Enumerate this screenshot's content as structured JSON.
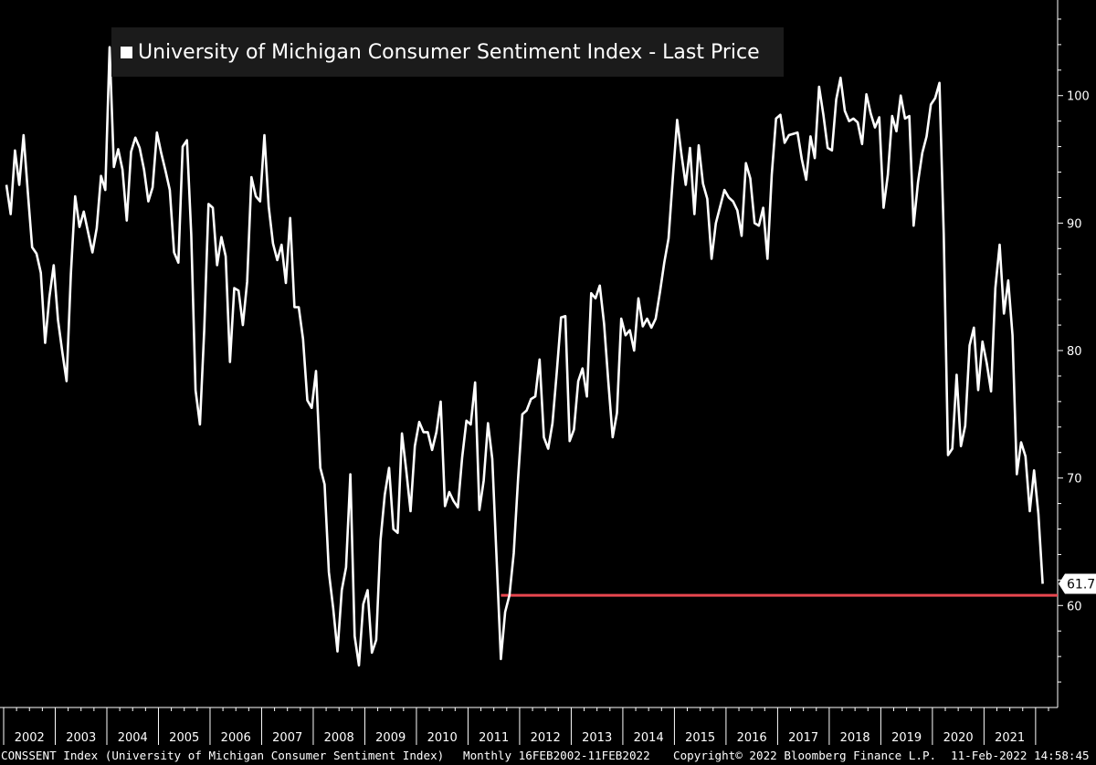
{
  "chart_data": {
    "type": "line",
    "title": "University of Michigan Consumer Sentiment Index - Last Price",
    "series": [
      {
        "name": "University of Michigan Consumer Sentiment Index - Last Price",
        "color": "#ffffff",
        "x": [
          "2002-01",
          "2002-02",
          "2002-03",
          "2002-04",
          "2002-05",
          "2002-06",
          "2002-07",
          "2002-08",
          "2002-09",
          "2002-10",
          "2002-11",
          "2002-12",
          "2003-01",
          "2003-02",
          "2003-03",
          "2003-04",
          "2003-05",
          "2003-06",
          "2003-07",
          "2003-08",
          "2003-09",
          "2003-10",
          "2003-11",
          "2003-12",
          "2004-01",
          "2004-02",
          "2004-03",
          "2004-04",
          "2004-05",
          "2004-06",
          "2004-07",
          "2004-08",
          "2004-09",
          "2004-10",
          "2004-11",
          "2004-12",
          "2005-01",
          "2005-02",
          "2005-03",
          "2005-04",
          "2005-05",
          "2005-06",
          "2005-07",
          "2005-08",
          "2005-09",
          "2005-10",
          "2005-11",
          "2005-12",
          "2006-01",
          "2006-02",
          "2006-03",
          "2006-04",
          "2006-05",
          "2006-06",
          "2006-07",
          "2006-08",
          "2006-09",
          "2006-10",
          "2006-11",
          "2006-12",
          "2007-01",
          "2007-02",
          "2007-03",
          "2007-04",
          "2007-05",
          "2007-06",
          "2007-07",
          "2007-08",
          "2007-09",
          "2007-10",
          "2007-11",
          "2007-12",
          "2008-01",
          "2008-02",
          "2008-03",
          "2008-04",
          "2008-05",
          "2008-06",
          "2008-07",
          "2008-08",
          "2008-09",
          "2008-10",
          "2008-11",
          "2008-12",
          "2009-01",
          "2009-02",
          "2009-03",
          "2009-04",
          "2009-05",
          "2009-06",
          "2009-07",
          "2009-08",
          "2009-09",
          "2009-10",
          "2009-11",
          "2009-12",
          "2010-01",
          "2010-02",
          "2010-03",
          "2010-04",
          "2010-05",
          "2010-06",
          "2010-07",
          "2010-08",
          "2010-09",
          "2010-10",
          "2010-11",
          "2010-12",
          "2011-01",
          "2011-02",
          "2011-03",
          "2011-04",
          "2011-05",
          "2011-06",
          "2011-07",
          "2011-08",
          "2011-09",
          "2011-10",
          "2011-11",
          "2011-12",
          "2012-01",
          "2012-02",
          "2012-03",
          "2012-04",
          "2012-05",
          "2012-06",
          "2012-07",
          "2012-08",
          "2012-09",
          "2012-10",
          "2012-11",
          "2012-12",
          "2013-01",
          "2013-02",
          "2013-03",
          "2013-04",
          "2013-05",
          "2013-06",
          "2013-07",
          "2013-08",
          "2013-09",
          "2013-10",
          "2013-11",
          "2013-12",
          "2014-01",
          "2014-02",
          "2014-03",
          "2014-04",
          "2014-05",
          "2014-06",
          "2014-07",
          "2014-08",
          "2014-09",
          "2014-10",
          "2014-11",
          "2014-12",
          "2015-01",
          "2015-02",
          "2015-03",
          "2015-04",
          "2015-05",
          "2015-06",
          "2015-07",
          "2015-08",
          "2015-09",
          "2015-10",
          "2015-11",
          "2015-12",
          "2016-01",
          "2016-02",
          "2016-03",
          "2016-04",
          "2016-05",
          "2016-06",
          "2016-07",
          "2016-08",
          "2016-09",
          "2016-10",
          "2016-11",
          "2016-12",
          "2017-01",
          "2017-02",
          "2017-03",
          "2017-04",
          "2017-05",
          "2017-06",
          "2017-07",
          "2017-08",
          "2017-09",
          "2017-10",
          "2017-11",
          "2017-12",
          "2018-01",
          "2018-02",
          "2018-03",
          "2018-04",
          "2018-05",
          "2018-06",
          "2018-07",
          "2018-08",
          "2018-09",
          "2018-10",
          "2018-11",
          "2018-12",
          "2019-01",
          "2019-02",
          "2019-03",
          "2019-04",
          "2019-05",
          "2019-06",
          "2019-07",
          "2019-08",
          "2019-09",
          "2019-10",
          "2019-11",
          "2019-12",
          "2020-01",
          "2020-02",
          "2020-03",
          "2020-04",
          "2020-05",
          "2020-06",
          "2020-07",
          "2020-08",
          "2020-09",
          "2020-10",
          "2020-11",
          "2020-12",
          "2021-01",
          "2021-02",
          "2021-03",
          "2021-04",
          "2021-05",
          "2021-06",
          "2021-07",
          "2021-08",
          "2021-09",
          "2021-10",
          "2021-11",
          "2021-12",
          "2022-01",
          "2022-02"
        ],
        "values": [
          93.0,
          90.7,
          95.7,
          93.0,
          96.9,
          92.4,
          88.1,
          87.6,
          86.1,
          80.6,
          84.2,
          86.7,
          82.4,
          79.9,
          77.6,
          86.0,
          92.1,
          89.7,
          90.9,
          89.3,
          87.7,
          89.6,
          93.7,
          92.6,
          103.8,
          94.4,
          95.8,
          94.2,
          90.2,
          95.6,
          96.7,
          95.9,
          94.2,
          91.7,
          92.8,
          97.1,
          95.5,
          94.1,
          92.6,
          87.7,
          86.9,
          96.0,
          96.5,
          89.1,
          76.9,
          74.2,
          81.6,
          91.5,
          91.2,
          86.7,
          88.9,
          87.4,
          79.1,
          84.9,
          84.7,
          82.0,
          85.4,
          93.6,
          92.1,
          91.7,
          96.9,
          91.3,
          88.4,
          87.1,
          88.3,
          85.3,
          90.4,
          83.4,
          83.4,
          80.9,
          76.1,
          75.5,
          78.4,
          70.8,
          69.5,
          62.6,
          59.8,
          56.4,
          61.2,
          63.0,
          70.3,
          57.6,
          55.3,
          60.1,
          61.2,
          56.3,
          57.3,
          65.1,
          68.7,
          70.8,
          66.0,
          65.7,
          73.5,
          70.6,
          67.4,
          72.5,
          74.4,
          73.6,
          73.6,
          72.2,
          73.6,
          76.0,
          67.8,
          68.9,
          68.2,
          67.7,
          71.6,
          74.5,
          74.2,
          77.5,
          67.5,
          69.8,
          74.3,
          71.5,
          63.7,
          55.8,
          59.5,
          60.8,
          64.1,
          69.9,
          75.0,
          75.3,
          76.2,
          76.4,
          79.3,
          73.2,
          72.3,
          74.3,
          78.3,
          82.6,
          82.7,
          72.9,
          73.8,
          77.6,
          78.6,
          76.4,
          84.5,
          84.1,
          85.1,
          82.1,
          77.5,
          73.2,
          75.1,
          82.5,
          81.2,
          81.6,
          80.0,
          84.1,
          81.9,
          82.5,
          81.8,
          82.5,
          84.6,
          86.9,
          88.8,
          93.6,
          98.1,
          95.4,
          93.0,
          95.9,
          90.7,
          96.1,
          93.1,
          91.9,
          87.2,
          90.0,
          91.3,
          92.6,
          92.0,
          91.7,
          91.0,
          89.0,
          94.7,
          93.5,
          90.0,
          89.8,
          91.2,
          87.2,
          93.8,
          98.2,
          98.5,
          96.3,
          96.9,
          97.0,
          97.1,
          95.0,
          93.4,
          96.8,
          95.1,
          100.7,
          98.5,
          95.9,
          95.7,
          99.7,
          101.4,
          98.8,
          98.0,
          98.2,
          97.9,
          96.2,
          100.1,
          98.6,
          97.5,
          98.3,
          91.2,
          93.8,
          98.4,
          97.2,
          100.0,
          98.2,
          98.4,
          89.8,
          93.2,
          95.5,
          96.8,
          99.3,
          99.8,
          101.0,
          89.1,
          71.8,
          72.3,
          78.1,
          72.5,
          74.1,
          80.4,
          81.8,
          76.9,
          80.7,
          79.0,
          76.8,
          84.9,
          88.3,
          82.9,
          85.5,
          81.2,
          70.3,
          72.8,
          71.7,
          67.4,
          70.6,
          67.2,
          61.7
        ]
      }
    ],
    "last_value_label": "61.7",
    "reference_line": {
      "value": 60.8,
      "start": "2011-08",
      "color": "#e8474f"
    },
    "x_tick_labels": [
      "2002",
      "2003",
      "2004",
      "2005",
      "2006",
      "2007",
      "2008",
      "2009",
      "2010",
      "2011",
      "2012",
      "2013",
      "2014",
      "2015",
      "2016",
      "2017",
      "2018",
      "2019",
      "2020",
      "2021"
    ],
    "y_ticks": [
      60,
      70,
      80,
      90,
      100
    ],
    "ylim": [
      52,
      107.5
    ],
    "xlim": [
      "2002-01",
      "2022-04"
    ],
    "xlabel": "",
    "ylabel": "",
    "y_axis_position": "right",
    "grid": false,
    "legend_position": "top-left"
  },
  "footer": {
    "ticker": "CONSSENT Index (University of Michigan Consumer Sentiment Index)",
    "period": "Monthly 16FEB2002-11FEB2022",
    "copyright": "Copyright© 2022 Bloomberg Finance L.P.",
    "timestamp": "11-Feb-2022 14:58:45"
  }
}
